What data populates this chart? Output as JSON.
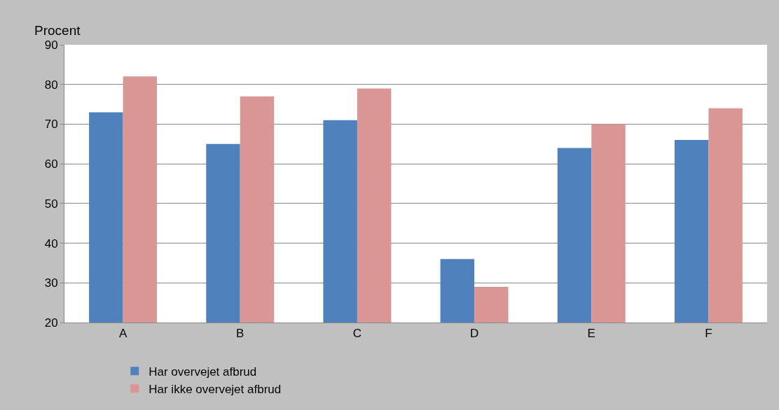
{
  "chart_data": {
    "type": "bar",
    "ylabel": "Procent",
    "categories": [
      "A",
      "B",
      "C",
      "D",
      "E",
      "F"
    ],
    "series": [
      {
        "name": "Har overvejet afbrud",
        "color": "#4f81bd",
        "values": [
          73,
          65,
          71,
          36,
          64,
          66
        ]
      },
      {
        "name": "Har ikke overvejet afbrud",
        "color": "#d99694",
        "values": [
          82,
          77,
          79,
          29,
          70,
          74
        ]
      }
    ],
    "ylim": [
      20,
      90
    ],
    "yticks": [
      20,
      30,
      40,
      50,
      60,
      70,
      80,
      90
    ],
    "grid": "y",
    "legend": "bottom"
  }
}
